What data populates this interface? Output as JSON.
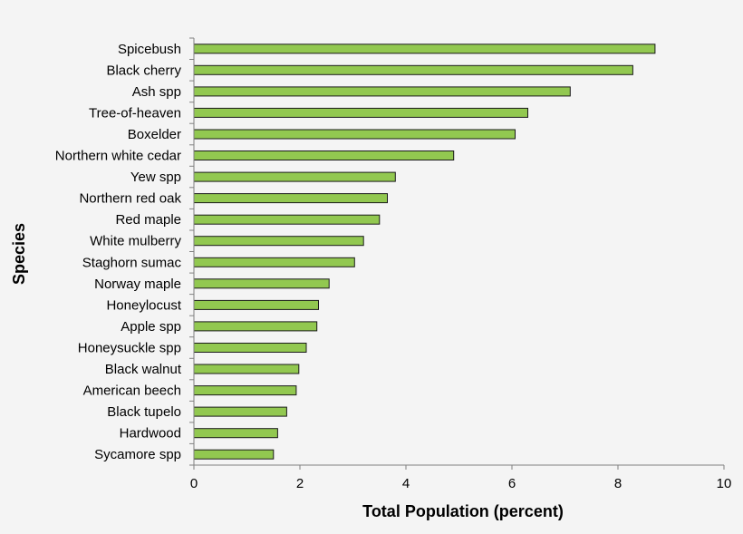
{
  "chart_data": {
    "type": "bar",
    "orientation": "horizontal",
    "categories": [
      "Spicebush",
      "Black cherry",
      "Ash spp",
      "Tree-of-heaven",
      "Boxelder",
      "Northern white cedar",
      "Yew spp",
      "Northern red oak",
      "Red maple",
      "White mulberry",
      "Staghorn sumac",
      "Norway maple",
      "Honeylocust",
      "Apple spp",
      "Honeysuckle spp",
      "Black walnut",
      "American beech",
      "Black tupelo",
      "Hardwood",
      "Sycamore spp"
    ],
    "values": [
      8.7,
      8.28,
      7.1,
      6.3,
      6.06,
      4.9,
      3.8,
      3.65,
      3.5,
      3.2,
      3.03,
      2.55,
      2.35,
      2.32,
      2.12,
      1.98,
      1.93,
      1.75,
      1.58,
      1.5
    ],
    "xlabel": "Total Population (percent)",
    "ylabel": "Species",
    "xlim": [
      0,
      10
    ],
    "xticks": [
      "0",
      "2",
      "4",
      "6",
      "8",
      "10"
    ],
    "grid": false,
    "legend": "none",
    "colors": {
      "bar_fill": "#92c850",
      "bar_stroke": "#1a1a1a",
      "axis": "#808080",
      "background": "#f4f4f4"
    }
  }
}
